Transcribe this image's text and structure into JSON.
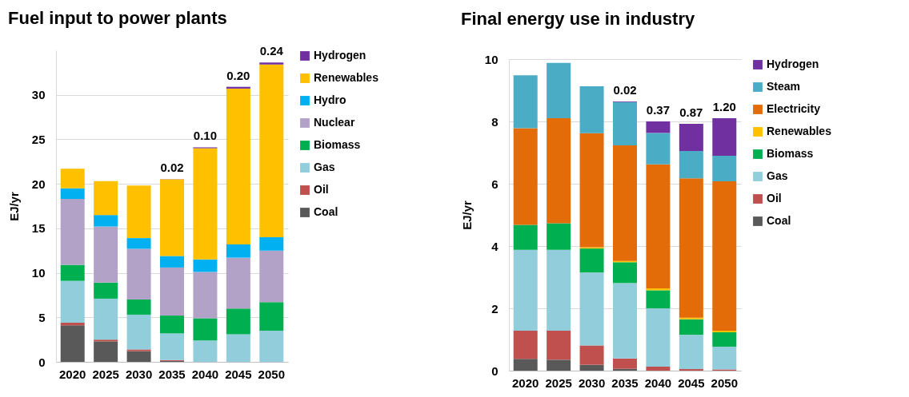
{
  "chart_data": [
    {
      "type": "bar",
      "stacked": true,
      "title": "Fuel input to power plants",
      "ylabel": "EJ/yr",
      "categories": [
        "2020",
        "2025",
        "2030",
        "2035",
        "2040",
        "2045",
        "2050"
      ],
      "ylim": [
        0,
        35
      ],
      "yticks": [
        0,
        5,
        10,
        15,
        20,
        25,
        30
      ],
      "grid": "y",
      "legend": "right",
      "series": [
        {
          "name": "Coal",
          "color": "#595959",
          "values": [
            4.1,
            2.3,
            1.2,
            0.1,
            0,
            0,
            0
          ]
        },
        {
          "name": "Oil",
          "color": "#c0504d",
          "values": [
            0.3,
            0.2,
            0.2,
            0.1,
            0,
            0,
            0
          ]
        },
        {
          "name": "Gas",
          "color": "#92cddc",
          "values": [
            4.7,
            4.6,
            3.9,
            3.0,
            2.4,
            3.1,
            3.5
          ]
        },
        {
          "name": "Biomass",
          "color": "#00b050",
          "values": [
            1.8,
            1.8,
            1.7,
            2.0,
            2.5,
            2.9,
            3.2
          ]
        },
        {
          "name": "Nuclear",
          "color": "#b3a2c7",
          "values": [
            7.4,
            6.3,
            5.7,
            5.4,
            5.2,
            5.7,
            5.8
          ]
        },
        {
          "name": "Hydro",
          "color": "#00b0f0",
          "values": [
            1.2,
            1.3,
            1.2,
            1.3,
            1.4,
            1.5,
            1.5
          ]
        },
        {
          "name": "Renewables",
          "color": "#ffc000",
          "values": [
            2.2,
            3.8,
            5.9,
            8.6,
            12.5,
            17.5,
            19.4
          ]
        },
        {
          "name": "Hydrogen",
          "color": "#7030a0",
          "values": [
            0,
            0,
            0,
            0.02,
            0.1,
            0.2,
            0.24
          ],
          "value_labels": [
            null,
            null,
            null,
            "0.02",
            "0.10",
            "0.20",
            "0.24"
          ]
        }
      ]
    },
    {
      "type": "bar",
      "stacked": true,
      "title": "Final energy use in industry",
      "ylabel": "EJ/yr",
      "categories": [
        "2020",
        "2025",
        "2030",
        "2035",
        "2040",
        "2045",
        "2050"
      ],
      "ylim": [
        0,
        10
      ],
      "yticks": [
        0,
        2,
        4,
        6,
        8,
        10
      ],
      "grid": "y",
      "legend": "right",
      "series": [
        {
          "name": "Coal",
          "color": "#595959",
          "values": [
            0.38,
            0.35,
            0.19,
            0.06,
            0,
            0,
            0
          ]
        },
        {
          "name": "Oil",
          "color": "#c0504d",
          "values": [
            0.9,
            0.93,
            0.62,
            0.33,
            0.13,
            0.05,
            0.04
          ]
        },
        {
          "name": "Gas",
          "color": "#92cddc",
          "values": [
            2.6,
            2.6,
            2.34,
            2.42,
            1.87,
            1.1,
            0.73
          ]
        },
        {
          "name": "Biomass",
          "color": "#00b050",
          "values": [
            0.8,
            0.85,
            0.77,
            0.67,
            0.58,
            0.5,
            0.46
          ]
        },
        {
          "name": "Renewables",
          "color": "#ffc000",
          "values": [
            0,
            0,
            0.04,
            0.04,
            0.06,
            0.05,
            0.05
          ]
        },
        {
          "name": "Electricity",
          "color": "#e36c09",
          "values": [
            3.1,
            3.37,
            3.66,
            3.71,
            3.98,
            4.47,
            4.8
          ]
        },
        {
          "name": "Steam",
          "color": "#4bacc6",
          "values": [
            1.7,
            1.78,
            1.51,
            1.39,
            1.01,
            0.88,
            0.82
          ]
        },
        {
          "name": "Hydrogen",
          "color": "#7030a0",
          "values": [
            0,
            0,
            0,
            0.02,
            0.37,
            0.87,
            1.2
          ],
          "value_labels": [
            null,
            null,
            null,
            "0.02",
            "0.37",
            "0.87",
            "1.20"
          ]
        }
      ]
    }
  ]
}
